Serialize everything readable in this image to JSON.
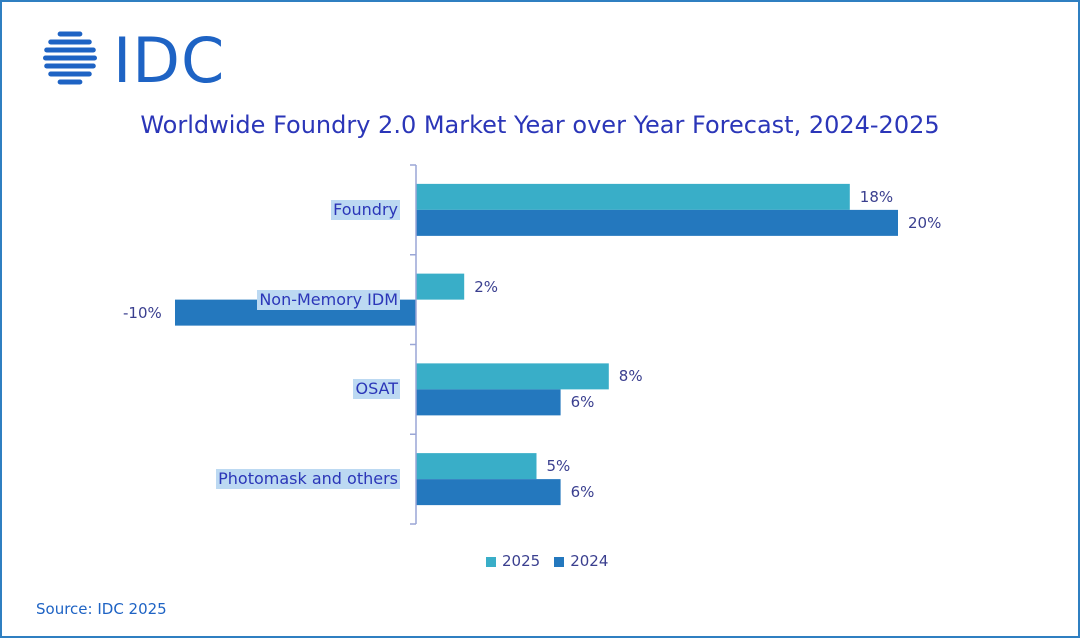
{
  "logo": {
    "text": "IDC"
  },
  "colors": {
    "brand": "#1e63c4",
    "title": "#2b36b8",
    "text": "#3a3f8f",
    "series_2025": "#39aec8",
    "series_2024": "#2478be",
    "label_highlight": "#bcd9f2",
    "frame": "#2f7fc1"
  },
  "chart_data": {
    "type": "bar",
    "orientation": "horizontal",
    "title": "Worldwide Foundry 2.0 Market Year over Year Forecast, 2024-2025",
    "categories": [
      "Foundry",
      "Non-Memory IDM",
      "OSAT",
      "Photomask and others"
    ],
    "series": [
      {
        "name": "2025",
        "values": [
          18,
          2,
          8,
          5
        ],
        "labels": [
          "18%",
          "2%",
          "8%",
          "5%"
        ]
      },
      {
        "name": "2024",
        "values": [
          20,
          -10,
          6,
          6
        ],
        "labels": [
          "20%",
          "-10%",
          "6%",
          "6%"
        ]
      }
    ],
    "unit": "%",
    "legend_position": "bottom",
    "grid": false
  },
  "source": "Source: IDC 2025"
}
